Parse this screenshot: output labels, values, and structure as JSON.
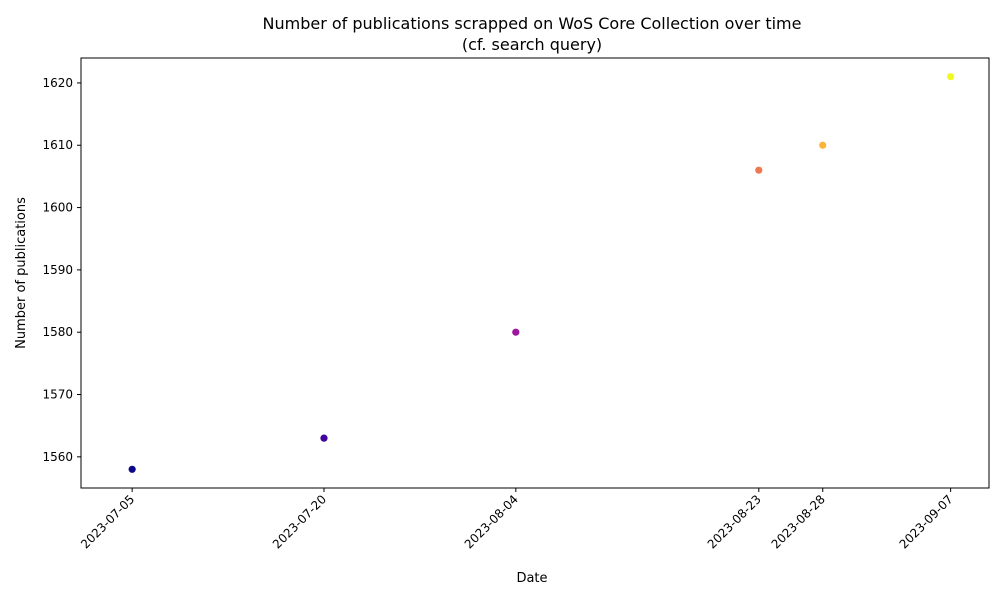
{
  "chart_data": {
    "type": "scatter",
    "title_line1": "Number of publications scrapped on WoS Core Collection over time",
    "title_line2": "(cf. search query)",
    "xlabel": "Date",
    "ylabel": "Number of publications",
    "x": [
      "2023-07-05",
      "2023-07-20",
      "2023-08-04",
      "2023-08-23",
      "2023-08-28",
      "2023-09-07"
    ],
    "y": [
      1558,
      1563,
      1580,
      1606,
      1610,
      1621
    ],
    "colors": [
      "#0d0887",
      "#41049d",
      "#9c179e",
      "#ed7953",
      "#fbb43a",
      "#f0f921"
    ],
    "xlim": [
      "2023-07-01",
      "2023-09-10"
    ],
    "ylim": [
      1555,
      1624
    ],
    "yticks": [
      1560,
      1570,
      1580,
      1590,
      1600,
      1610,
      1620
    ],
    "xticks": [
      "2023-07-05",
      "2023-07-20",
      "2023-08-04",
      "2023-08-23",
      "2023-08-28",
      "2023-09-07"
    ],
    "grid": false,
    "legend": "none"
  }
}
